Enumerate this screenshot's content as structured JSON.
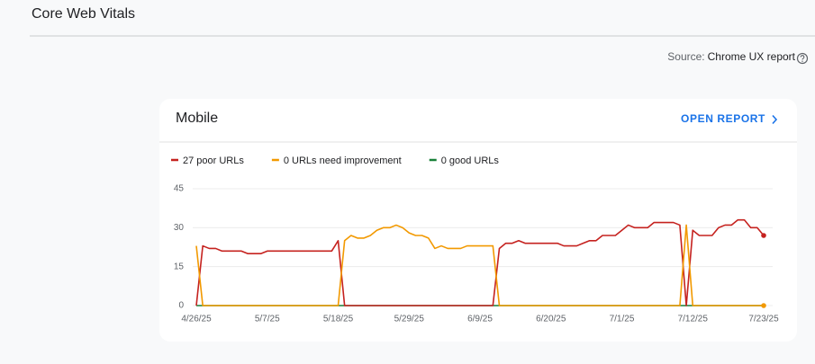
{
  "page": {
    "title": "Core Web Vitals",
    "source_label": "Source:",
    "source_name": "Chrome UX report"
  },
  "card": {
    "title": "Mobile",
    "link": "OPEN REPORT"
  },
  "chart_data": {
    "type": "line",
    "categories": [
      "4/26/25",
      null,
      null,
      null,
      null,
      null,
      null,
      null,
      null,
      null,
      null,
      "5/7/25",
      null,
      null,
      null,
      null,
      null,
      null,
      null,
      null,
      null,
      null,
      "5/18/25",
      null,
      null,
      null,
      null,
      null,
      null,
      null,
      null,
      null,
      null,
      "5/29/25",
      null,
      null,
      null,
      null,
      null,
      null,
      null,
      null,
      null,
      null,
      "6/9/25",
      null,
      null,
      null,
      null,
      null,
      null,
      null,
      null,
      null,
      null,
      "6/20/25",
      null,
      null,
      null,
      null,
      null,
      null,
      null,
      null,
      null,
      null,
      "7/1/25",
      null,
      null,
      null,
      null,
      null,
      null,
      null,
      null,
      null,
      null,
      "7/12/25",
      null,
      null,
      null,
      null,
      null,
      null,
      null,
      null,
      null,
      null,
      "7/23/25"
    ],
    "series": [
      {
        "name": "27 poor URLs",
        "color": "#c5221f",
        "values": [
          0,
          23,
          22,
          22,
          21,
          21,
          21,
          21,
          20,
          20,
          20,
          21,
          21,
          21,
          21,
          21,
          21,
          21,
          21,
          21,
          21,
          21,
          25,
          0,
          0,
          0,
          0,
          0,
          0,
          0,
          0,
          0,
          0,
          0,
          0,
          0,
          0,
          0,
          0,
          0,
          0,
          0,
          0,
          0,
          0,
          0,
          0,
          22,
          24,
          24,
          25,
          24,
          24,
          24,
          24,
          24,
          24,
          23,
          23,
          23,
          24,
          25,
          25,
          27,
          27,
          27,
          29,
          31,
          30,
          30,
          30,
          32,
          32,
          32,
          32,
          31,
          0,
          29,
          27,
          27,
          27,
          30,
          31,
          31,
          33,
          33,
          30,
          30,
          27
        ]
      },
      {
        "name": "0 URLs need improvement",
        "color": "#f29900",
        "values": [
          23,
          0,
          0,
          0,
          0,
          0,
          0,
          0,
          0,
          0,
          0,
          0,
          0,
          0,
          0,
          0,
          0,
          0,
          0,
          0,
          0,
          0,
          0,
          25,
          27,
          26,
          26,
          27,
          29,
          30,
          30,
          31,
          30,
          28,
          27,
          27,
          26,
          22,
          23,
          22,
          22,
          22,
          23,
          23,
          23,
          23,
          23,
          0,
          0,
          0,
          0,
          0,
          0,
          0,
          0,
          0,
          0,
          0,
          0,
          0,
          0,
          0,
          0,
          0,
          0,
          0,
          0,
          0,
          0,
          0,
          0,
          0,
          0,
          0,
          0,
          0,
          31,
          0,
          0,
          0,
          0,
          0,
          0,
          0,
          0,
          0,
          0,
          0,
          0
        ]
      },
      {
        "name": "0 good URLs",
        "color": "#188038",
        "values": [
          0,
          0,
          0,
          0,
          0,
          0,
          0,
          0,
          0,
          0,
          0,
          0,
          0,
          0,
          0,
          0,
          0,
          0,
          0,
          0,
          0,
          0,
          0,
          0,
          0,
          0,
          0,
          0,
          0,
          0,
          0,
          0,
          0,
          0,
          0,
          0,
          0,
          0,
          0,
          0,
          0,
          0,
          0,
          0,
          0,
          0,
          0,
          0,
          0,
          0,
          0,
          0,
          0,
          0,
          0,
          0,
          0,
          0,
          0,
          0,
          0,
          0,
          0,
          0,
          0,
          0,
          0,
          0,
          0,
          0,
          0,
          0,
          0,
          0,
          0,
          0,
          0,
          0,
          0,
          0,
          0,
          0,
          0,
          0,
          0,
          0,
          0,
          0,
          0
        ]
      }
    ],
    "ylim": [
      0,
      45
    ],
    "yticks": [
      0,
      15,
      30,
      45
    ],
    "grid": true
  }
}
